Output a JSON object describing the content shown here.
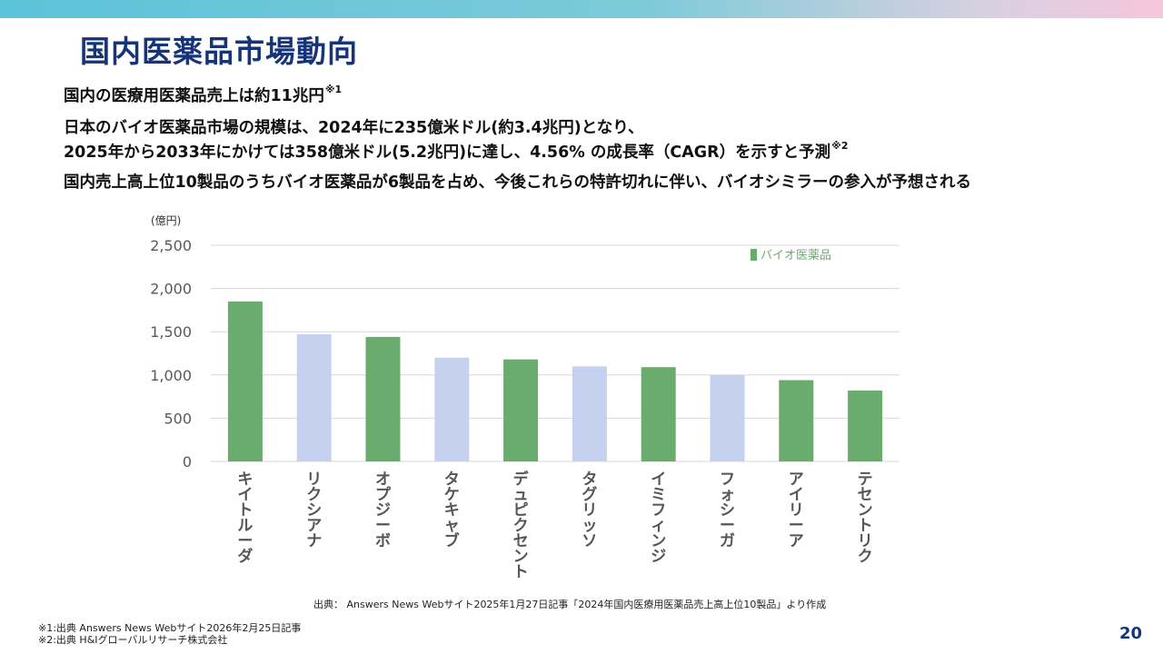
{
  "slide": {
    "title": "国内医薬品市場動向",
    "page_number": "20",
    "bullets": [
      {
        "text": "国内の医療用医薬品売上は約11兆円",
        "note": "※1"
      },
      {
        "text_line1": "日本のバイオ医薬品市場の規模は、2024年に235億米ドル(約3.4兆円)となり、",
        "text_line2": "2025年から2033年にかけては358億米ドル(5.2兆円)に達し、4.56% の成長率（CAGR）を示すと予測",
        "note": "※2"
      },
      {
        "text": "国内売上高上位10製品のうちバイオ医薬品が6製品を占め、今後これらの特許切れに伴い、バイオシミラーの参入が予想される"
      }
    ],
    "source": "出典： Answers News Webサイト2025年1月27日記事「2024年国内医療用医薬品売上高上位10製品」より作成",
    "footnotes": [
      "※1:出典  Answers News Webサイト2026年2月25日記事",
      "※2:出典  H&Iグローバルリサーチ株式会社"
    ]
  },
  "colors": {
    "bio": "#6aab6e",
    "non_bio": "#c6d1ef",
    "title": "#16347a",
    "legend_text": "#6aab6e",
    "grid": "#d9d9d9",
    "tick": "#595959"
  },
  "chart_data": {
    "type": "bar",
    "unit_label": "(億円)",
    "categories": [
      "キイトルーダ",
      "リクシアナ",
      "オプジーボ",
      "タケキャブ",
      "デュピクセント",
      "タグリッソ",
      "イミフィンジ",
      "フォシーガ",
      "アイリーア",
      "テセントリク"
    ],
    "values": [
      1850,
      1470,
      1440,
      1200,
      1180,
      1100,
      1090,
      1000,
      940,
      820
    ],
    "is_bio": [
      true,
      false,
      true,
      false,
      true,
      false,
      true,
      false,
      true,
      true
    ],
    "ylim": [
      0,
      2500
    ],
    "yticks": [
      0,
      500,
      1000,
      1500,
      2000,
      2500
    ],
    "ytick_labels": [
      "0",
      "500",
      "1,000",
      "1,500",
      "2,000",
      "2,500"
    ],
    "legend": [
      {
        "label": "バイオ医薬品",
        "color": "#6aab6e"
      }
    ],
    "grid": true,
    "legend_position": "top-right"
  }
}
